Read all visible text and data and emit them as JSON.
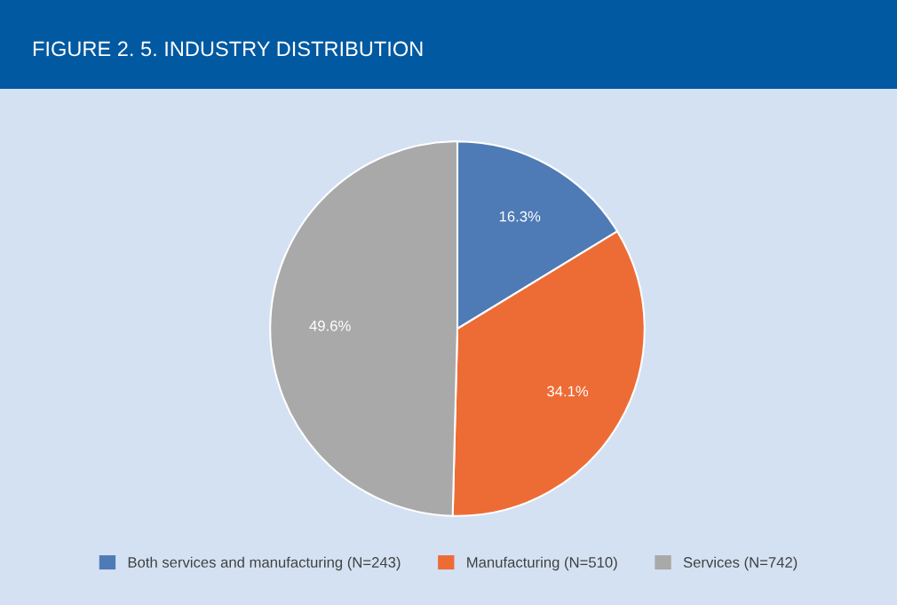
{
  "chart_data": {
    "type": "pie",
    "title": "FIGURE 2. 5. INDUSTRY DISTRIBUTION",
    "categories": [
      "Both services and manufacturing (N=243)",
      "Manufacturing (N=510)",
      "Services (N=742)"
    ],
    "values": [
      16.3,
      34.1,
      49.6
    ],
    "value_labels": [
      "16.3%",
      "34.1%",
      "49.6%"
    ],
    "colors": [
      "#4e7bb5",
      "#ed6c36",
      "#a8a9a8"
    ],
    "legend": "bottom"
  }
}
